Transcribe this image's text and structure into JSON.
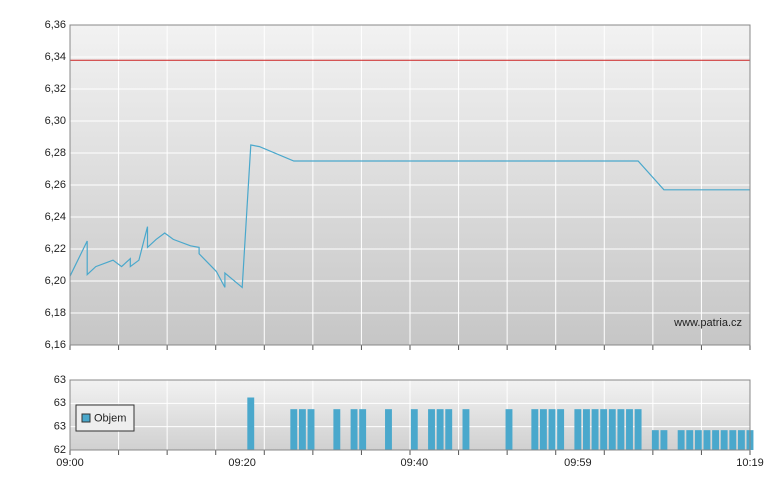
{
  "chart_data": [
    {
      "type": "line",
      "x": [
        "09:00",
        "09:02",
        "09:02",
        "09:03",
        "09:05",
        "09:06",
        "09:07",
        "09:07",
        "09:08",
        "09:09",
        "09:09",
        "09:10",
        "09:11",
        "09:12",
        "09:14",
        "09:15",
        "09:15",
        "09:17",
        "09:18",
        "09:18",
        "09:20",
        "09:21",
        "09:22",
        "09:26",
        "10:06",
        "10:09",
        "10:19"
      ],
      "series": [
        {
          "color": "#4aa8cc",
          "values": [
            6.203,
            6.225,
            6.204,
            6.209,
            6.213,
            6.209,
            6.214,
            6.209,
            6.213,
            6.234,
            6.221,
            6.226,
            6.23,
            6.226,
            6.222,
            6.221,
            6.217,
            6.206,
            6.196,
            6.205,
            6.196,
            6.285,
            6.284,
            6.275,
            6.275,
            6.257,
            6.257
          ]
        }
      ],
      "reference_line": {
        "value": 6.338,
        "color": "#cc2222"
      },
      "xlim": [
        "09:00",
        "10:19"
      ],
      "ylim": [
        6.16,
        6.36
      ],
      "yticks": [
        {
          "value": 6.16,
          "label": "6,16"
        },
        {
          "value": 6.18,
          "label": "6,18"
        },
        {
          "value": 6.2,
          "label": "6,20"
        },
        {
          "value": 6.22,
          "label": "6,22"
        },
        {
          "value": 6.24,
          "label": "6,24"
        },
        {
          "value": 6.26,
          "label": "6,26"
        },
        {
          "value": 6.28,
          "label": "6,28"
        },
        {
          "value": 6.3,
          "label": "6,30"
        },
        {
          "value": 6.32,
          "label": "6,32"
        },
        {
          "value": 6.34,
          "label": "6,34"
        },
        {
          "value": 6.36,
          "label": "6,36"
        }
      ],
      "grid": true,
      "watermark": "www.patria.cz"
    },
    {
      "type": "bar",
      "x": [
        "09:21",
        "09:26",
        "09:27",
        "09:28",
        "09:31",
        "09:33",
        "09:34",
        "09:37",
        "09:40",
        "09:42",
        "09:43",
        "09:44",
        "09:46",
        "09:51",
        "09:54",
        "09:55",
        "09:56",
        "09:57",
        "09:59",
        "10:00",
        "10:01",
        "10:02",
        "10:03",
        "10:04",
        "10:05",
        "10:06",
        "10:08",
        "10:09",
        "10:11",
        "10:12",
        "10:13",
        "10:14",
        "10:15",
        "10:16",
        "10:17",
        "10:18",
        "10:19"
      ],
      "series": [
        {
          "name": "Objem",
          "color": "#4aa8cc",
          "values": [
            62.85,
            62.75,
            62.75,
            62.75,
            62.75,
            62.75,
            62.75,
            62.75,
            62.75,
            62.75,
            62.75,
            62.75,
            62.75,
            62.75,
            62.75,
            62.75,
            62.75,
            62.75,
            62.75,
            62.75,
            62.75,
            62.75,
            62.75,
            62.75,
            62.75,
            62.75,
            62.57,
            62.57,
            62.57,
            62.57,
            62.57,
            62.57,
            62.57,
            62.57,
            62.57,
            62.57,
            62.57
          ]
        }
      ],
      "xlim": [
        "09:00",
        "10:19"
      ],
      "xticks": [
        "09:00",
        "09:20",
        "09:40",
        "09:59",
        "10:19"
      ],
      "ylim": [
        62.4,
        63.0
      ],
      "yticks": [
        {
          "value": 62.4,
          "label": "62"
        },
        {
          "value": 62.6,
          "label": "63"
        },
        {
          "value": 62.8,
          "label": "63"
        },
        {
          "value": 63.0,
          "label": "63"
        }
      ],
      "grid": true,
      "legend": "top-left"
    }
  ]
}
